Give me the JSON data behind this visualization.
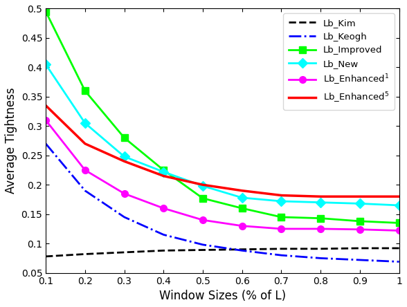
{
  "x": [
    0.1,
    0.2,
    0.3,
    0.4,
    0.5,
    0.6,
    0.7,
    0.8,
    0.9,
    1.0
  ],
  "lb_kim": [
    0.078,
    0.082,
    0.085,
    0.088,
    0.089,
    0.09,
    0.091,
    0.091,
    0.092,
    0.092
  ],
  "lb_keogh": [
    0.27,
    0.19,
    0.145,
    0.115,
    0.098,
    0.088,
    0.08,
    0.075,
    0.072,
    0.069
  ],
  "lb_improved": [
    0.495,
    0.36,
    0.28,
    0.225,
    0.177,
    0.16,
    0.145,
    0.143,
    0.138,
    0.135
  ],
  "lb_new": [
    0.405,
    0.305,
    0.248,
    0.222,
    0.198,
    0.178,
    0.172,
    0.17,
    0.168,
    0.165
  ],
  "lb_enhanced1": [
    0.31,
    0.225,
    0.185,
    0.16,
    0.14,
    0.13,
    0.125,
    0.125,
    0.124,
    0.122
  ],
  "lb_enhanced5": [
    0.335,
    0.27,
    0.24,
    0.215,
    0.2,
    0.19,
    0.182,
    0.18,
    0.18,
    0.18
  ],
  "ylim": [
    0.05,
    0.5
  ],
  "yticks": [
    0.05,
    0.1,
    0.15,
    0.2,
    0.25,
    0.3,
    0.35,
    0.4,
    0.45,
    0.5
  ],
  "xticks": [
    0.1,
    0.2,
    0.3,
    0.4,
    0.5,
    0.6,
    0.7,
    0.8,
    0.9,
    1.0
  ],
  "xlabel": "Window Sizes (% of L)",
  "ylabel": "Average Tightness",
  "color_kim": "#000000",
  "color_keogh": "#0000FF",
  "color_improved": "#00FF00",
  "color_new": "#00FFFF",
  "color_enhanced1": "#FF00FF",
  "color_enhanced5": "#FF0000"
}
